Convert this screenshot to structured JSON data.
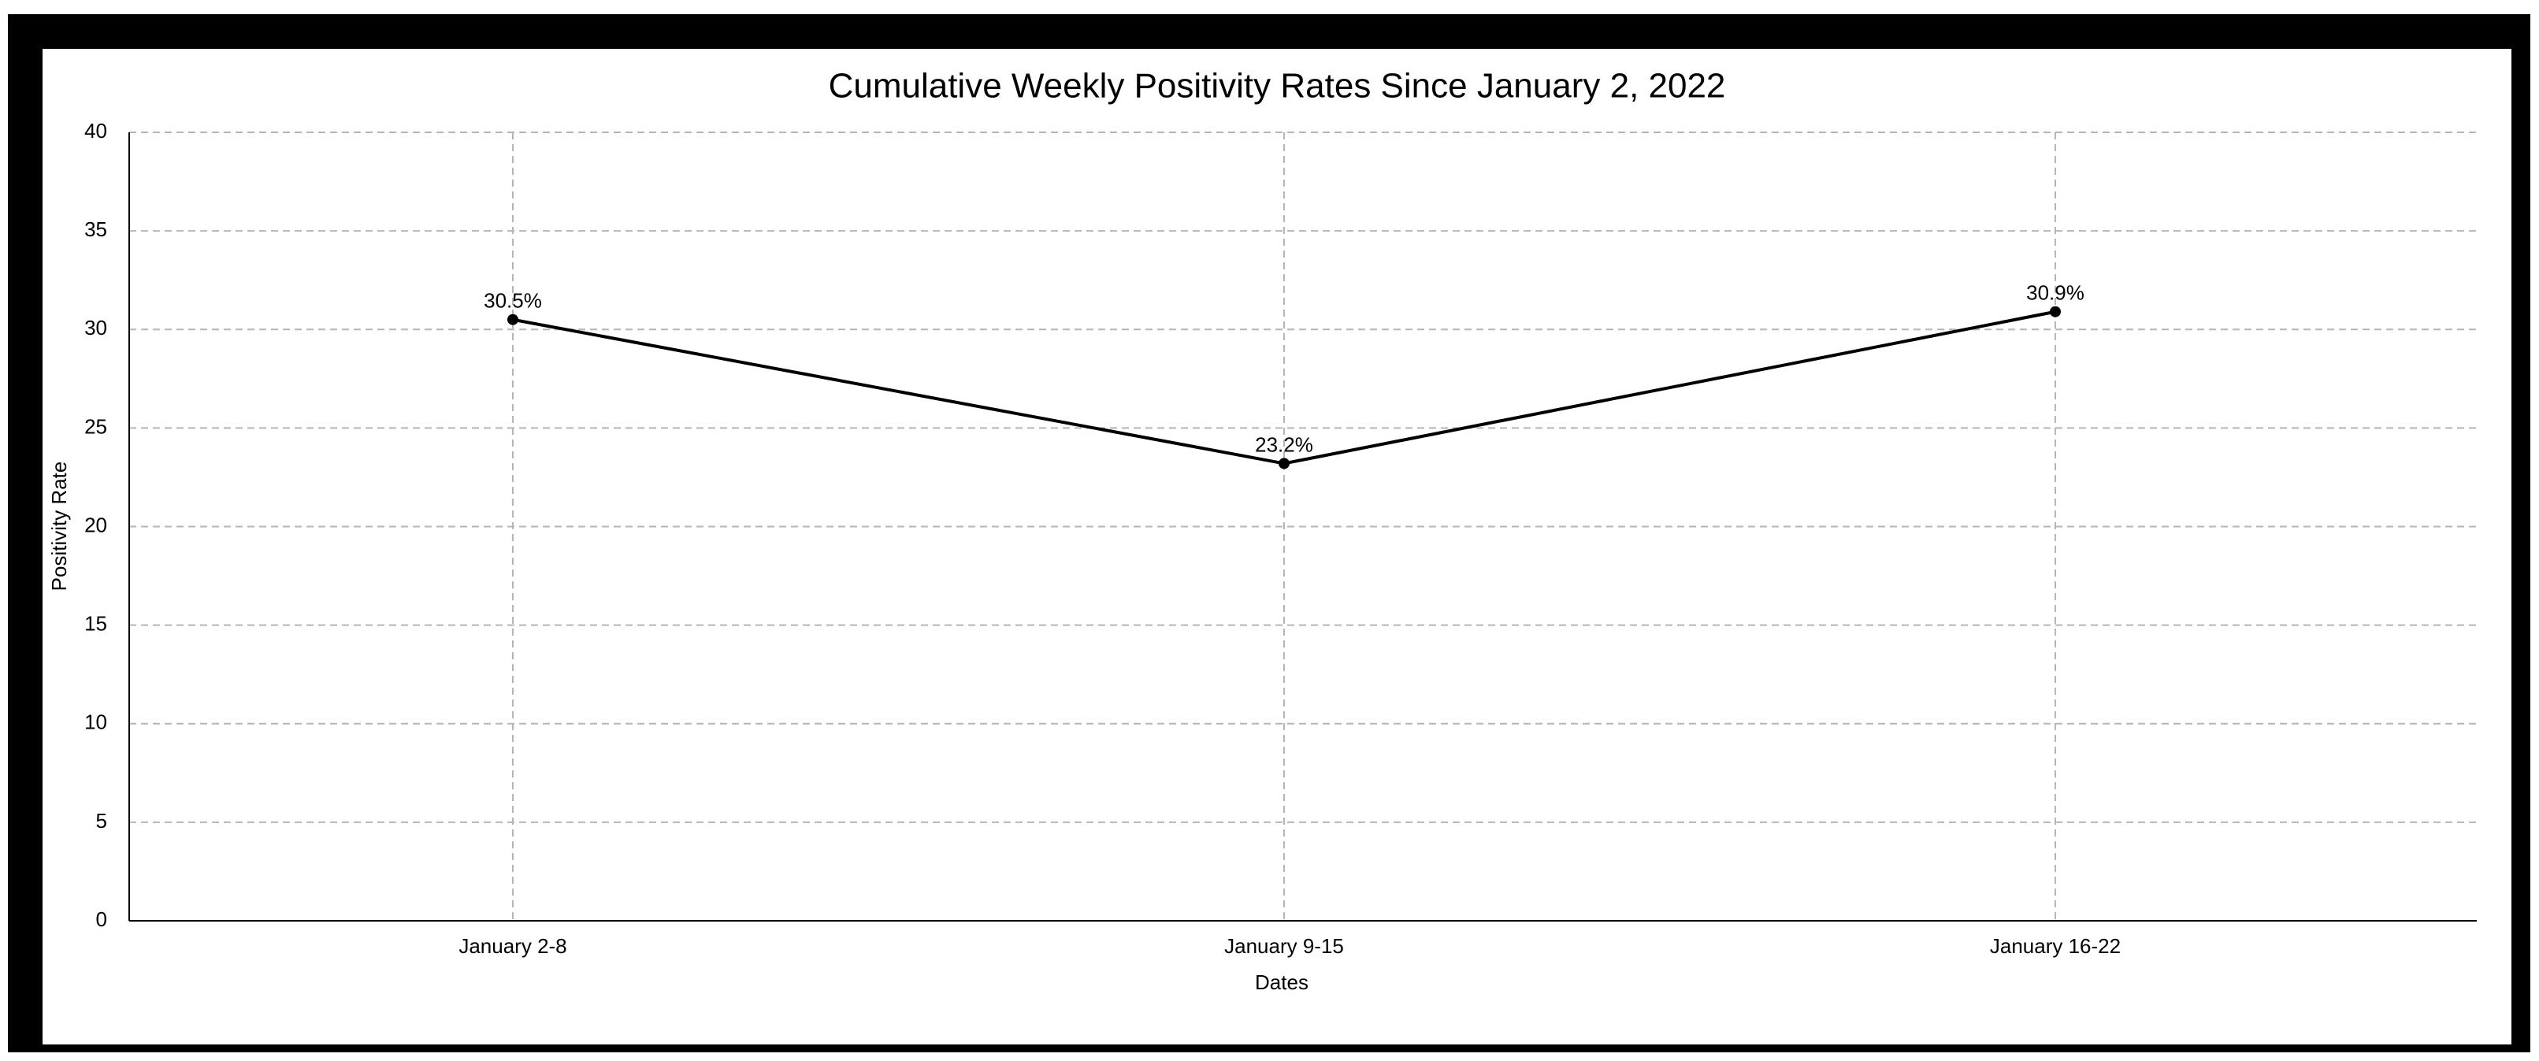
{
  "chart_data": {
    "type": "line",
    "title": "Cumulative Weekly Positivity Rates Since January 2, 2022",
    "xlabel": "Dates",
    "ylabel": "Positivity Rate",
    "categories": [
      "January 2-8",
      "January 9-15",
      "January 16-22"
    ],
    "series": [
      {
        "values": [
          30.5,
          23.2,
          30.9
        ],
        "labels": [
          "30.5%",
          "23.2%",
          "30.9%"
        ],
        "color": "#000000"
      }
    ],
    "ylim": [
      0,
      40
    ],
    "yticks": [
      0,
      5,
      10,
      15,
      20,
      25,
      30,
      35,
      40
    ],
    "grid": true,
    "legend": "none"
  }
}
